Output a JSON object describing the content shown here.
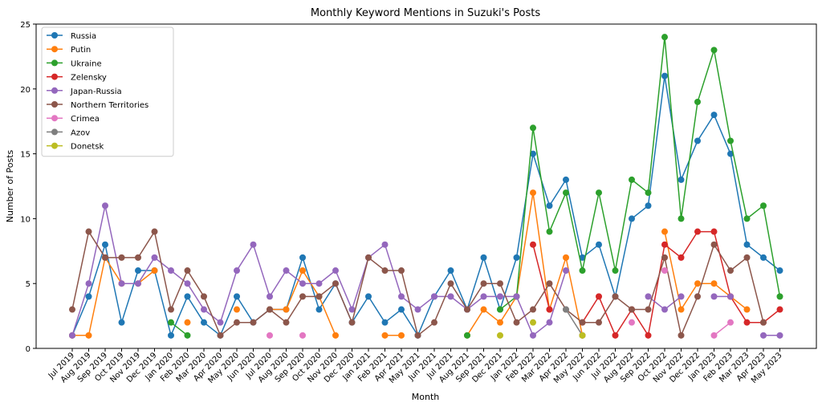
{
  "chart_data": {
    "type": "line",
    "title": "Monthly Keyword Mentions in Suzuki's Posts",
    "xlabel": "Month",
    "ylabel": "Number of Posts",
    "ylim": [
      0,
      25
    ],
    "yticks": [
      0,
      5,
      10,
      15,
      20,
      25
    ],
    "grid": false,
    "legend_position": "top-left",
    "categories": [
      "Jul 2019",
      "Aug 2019",
      "Sep 2019",
      "Oct 2019",
      "Nov 2019",
      "Dec 2019",
      "Jan 2020",
      "Feb 2020",
      "Mar 2020",
      "Apr 2020",
      "May 2020",
      "Jun 2020",
      "Jul 2020",
      "Aug 2020",
      "Sep 2020",
      "Oct 2020",
      "Nov 2020",
      "Dec 2020",
      "Jan 2021",
      "Feb 2021",
      "Apr 2021",
      "May 2021",
      "Jun 2021",
      "Jul 2021",
      "Aug 2021",
      "Sep 2021",
      "Dec 2021",
      "Jan 2022",
      "Feb 2022",
      "Mar 2022",
      "Apr 2022",
      "May 2022",
      "Jun 2022",
      "Jul 2022",
      "Aug 2022",
      "Sep 2022",
      "Oct 2022",
      "Nov 2022",
      "Dec 2022",
      "Jan 2023",
      "Feb 2023",
      "Mar 2023",
      "Apr 2023",
      "May 2023"
    ],
    "series": [
      {
        "name": "Russia",
        "color": "#1f77b4",
        "values": [
          1,
          4,
          8,
          2,
          6,
          6,
          1,
          4,
          2,
          1,
          4,
          2,
          3,
          3,
          7,
          3,
          5,
          2,
          4,
          2,
          3,
          1,
          4,
          6,
          3,
          7,
          3,
          7,
          15,
          11,
          13,
          7,
          8,
          4,
          10,
          11,
          21,
          13,
          16,
          18,
          15,
          8,
          7,
          6
        ]
      },
      {
        "name": "Putin",
        "color": "#ff7f0e",
        "values": [
          1,
          1,
          7,
          5,
          5,
          6,
          null,
          2,
          null,
          null,
          3,
          null,
          3,
          3,
          6,
          4,
          1,
          null,
          null,
          1,
          1,
          null,
          null,
          null,
          1,
          3,
          2,
          4,
          12,
          3,
          7,
          1,
          null,
          null,
          null,
          null,
          9,
          3,
          5,
          5,
          4,
          3,
          null,
          null
        ]
      },
      {
        "name": "Ukraine",
        "color": "#2ca02c",
        "values": [
          null,
          null,
          null,
          null,
          null,
          null,
          2,
          1,
          null,
          null,
          null,
          null,
          null,
          null,
          null,
          null,
          null,
          null,
          null,
          null,
          null,
          null,
          null,
          null,
          1,
          null,
          3,
          4,
          17,
          9,
          12,
          6,
          12,
          6,
          13,
          12,
          24,
          10,
          19,
          23,
          16,
          10,
          11,
          4
        ]
      },
      {
        "name": "Zelensky",
        "color": "#d62728",
        "values": [
          null,
          null,
          null,
          null,
          null,
          null,
          null,
          null,
          null,
          null,
          null,
          null,
          null,
          null,
          null,
          null,
          null,
          null,
          null,
          null,
          null,
          null,
          null,
          null,
          null,
          null,
          null,
          null,
          8,
          3,
          null,
          2,
          4,
          1,
          3,
          1,
          8,
          7,
          9,
          9,
          4,
          2,
          2,
          3
        ]
      },
      {
        "name": "Japan-Russia",
        "color": "#9467bd",
        "values": [
          1,
          5,
          11,
          5,
          5,
          7,
          6,
          5,
          3,
          2,
          6,
          8,
          4,
          6,
          5,
          5,
          6,
          3,
          7,
          8,
          4,
          3,
          4,
          4,
          3,
          4,
          4,
          4,
          1,
          2,
          6,
          null,
          null,
          null,
          null,
          4,
          3,
          4,
          null,
          4,
          4,
          null,
          1,
          1
        ]
      },
      {
        "name": "Northern Territories",
        "color": "#8c564b",
        "values": [
          3,
          9,
          7,
          7,
          7,
          9,
          3,
          6,
          4,
          1,
          2,
          2,
          3,
          2,
          4,
          4,
          5,
          2,
          7,
          6,
          6,
          1,
          2,
          5,
          3,
          5,
          5,
          2,
          3,
          5,
          3,
          2,
          2,
          4,
          3,
          3,
          7,
          1,
          4,
          8,
          6,
          7,
          2,
          null
        ]
      },
      {
        "name": "Crimea",
        "color": "#e377c2",
        "values": [
          null,
          null,
          null,
          null,
          null,
          null,
          null,
          null,
          null,
          null,
          null,
          null,
          1,
          null,
          1,
          null,
          null,
          null,
          null,
          null,
          null,
          null,
          null,
          null,
          null,
          null,
          null,
          null,
          null,
          null,
          null,
          null,
          null,
          null,
          2,
          null,
          6,
          null,
          null,
          1,
          2,
          null,
          null,
          null
        ]
      },
      {
        "name": "Azov",
        "color": "#7f7f7f",
        "values": [
          null,
          null,
          null,
          null,
          null,
          null,
          null,
          null,
          null,
          null,
          null,
          null,
          null,
          null,
          null,
          null,
          null,
          null,
          null,
          null,
          null,
          null,
          null,
          null,
          null,
          null,
          null,
          null,
          null,
          null,
          3,
          1,
          null,
          null,
          null,
          null,
          null,
          null,
          null,
          null,
          null,
          null,
          null,
          null
        ]
      },
      {
        "name": "Donetsk",
        "color": "#bcbd22",
        "values": [
          null,
          null,
          null,
          null,
          null,
          null,
          null,
          null,
          null,
          null,
          null,
          null,
          null,
          null,
          null,
          null,
          null,
          null,
          null,
          null,
          null,
          null,
          null,
          null,
          null,
          null,
          1,
          null,
          2,
          null,
          null,
          1,
          null,
          null,
          null,
          null,
          null,
          null,
          null,
          null,
          null,
          null,
          null,
          null
        ]
      }
    ]
  }
}
